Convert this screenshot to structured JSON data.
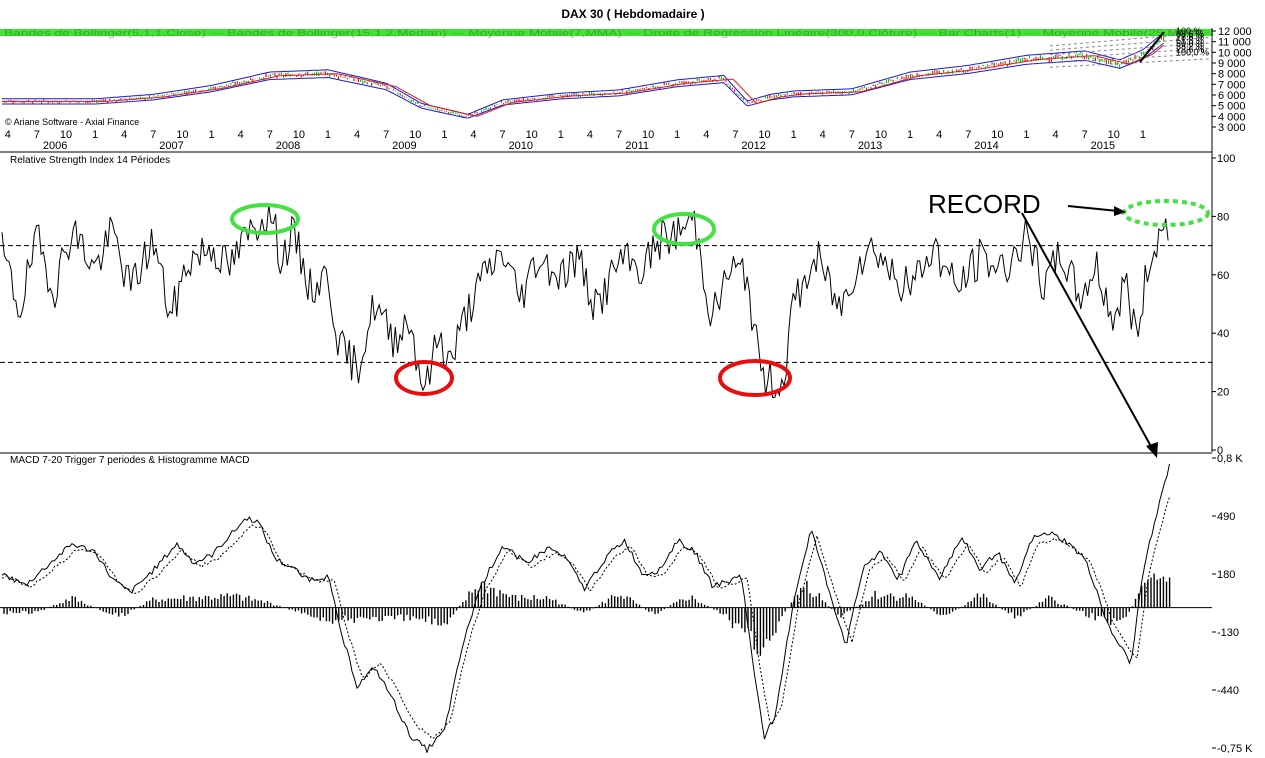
{
  "title": "DAX 30  ( Hebdomadaire )",
  "copyright": "© Ariane Software - Axial Finance",
  "legend_line": "Bandes de Bollinger(5,1,1,Close) — Bandes de Bollinger(15,1,2,Median) — Moyenne Mobile(7,MMA) — Droite de Regression Linéaire(300,0,Clôture) — Bar Charts(1) — Moyenne Mobile(25,MMA)",
  "colors": {
    "accent_green": "#3fe62e",
    "up_bar": "#18b018",
    "down_bar": "#e01818",
    "bollinger_blue": "#1a1ad8",
    "moving_avg_red": "#d81a1a",
    "highlight_green": "#44e044",
    "highlight_red": "#e80e0e"
  },
  "fib_labels": [
    "100 %",
    "88,6 %",
    "78,6 %",
    "61,8 %",
    "50,0 %",
    "38,2 %",
    "23,6 %",
    "100,0 %"
  ],
  "annotations": {
    "record_text": "RECORD"
  },
  "chart_data": [
    {
      "type": "bar",
      "title": "DAX 30  ( Hebdomadaire )",
      "ylim": [
        3000,
        12000
      ],
      "y_ticks": [
        "12 000",
        "11 000",
        "10 000",
        "9 000",
        "8 000",
        "7 000",
        "6 000",
        "5 000",
        "4 000",
        "3 000"
      ],
      "month_ticks": [
        "4",
        "7",
        "10",
        "1",
        "4",
        "7",
        "10",
        "1",
        "4",
        "7",
        "10",
        "1",
        "4",
        "7",
        "10",
        "1",
        "4",
        "7",
        "10",
        "1",
        "4",
        "7",
        "10",
        "1",
        "4",
        "7",
        "10",
        "1",
        "4",
        "7",
        "10",
        "1",
        "4",
        "7",
        "10",
        "1",
        "4",
        "7",
        "10",
        "1"
      ],
      "year_labels": [
        "2006",
        "2007",
        "2008",
        "2009",
        "2010",
        "2011",
        "2012",
        "2013",
        "2014",
        "2015"
      ],
      "x": [
        2006.0,
        2006.5,
        2007.0,
        2007.5,
        2008.0,
        2008.5,
        2008.8,
        2009.2,
        2009.5,
        2010.0,
        2010.5,
        2011.0,
        2011.4,
        2011.6,
        2011.8,
        2012.0,
        2012.5,
        2013.0,
        2013.5,
        2014.0,
        2014.5,
        2014.8,
        2015.0,
        2015.25
      ],
      "values": [
        5400,
        5800,
        6600,
        7800,
        8000,
        6800,
        5000,
        4000,
        5300,
        5900,
        6200,
        7100,
        7500,
        5200,
        5800,
        6100,
        6300,
        7800,
        8400,
        9300,
        9700,
        8900,
        9800,
        12000
      ]
    },
    {
      "type": "line",
      "title": "Relative Strength Index 14 Périodes",
      "ylim": [
        0,
        100
      ],
      "y_ticks": [
        "100",
        "80",
        "60",
        "40",
        "20",
        "0"
      ],
      "levels": [
        70,
        30
      ],
      "x": [
        2005.2,
        2005.35,
        2005.5,
        2005.65,
        2005.8,
        2006.0,
        2006.15,
        2006.3,
        2006.5,
        2006.65,
        2006.8,
        2007.0,
        2007.15,
        2007.3,
        2007.4,
        2007.5,
        2007.6,
        2007.7,
        2007.85,
        2008.0,
        2008.1,
        2008.25,
        2008.4,
        2008.55,
        2008.7,
        2008.8,
        2008.85,
        2008.95,
        2009.05,
        2009.2,
        2009.35,
        2009.5,
        2009.65,
        2009.8,
        2010.0,
        2010.15,
        2010.3,
        2010.5,
        2010.7,
        2010.85,
        2011.0,
        2011.1,
        2011.15,
        2011.3,
        2011.45,
        2011.6,
        2011.7,
        2011.75,
        2011.9,
        2012.0,
        2012.2,
        2012.4,
        2012.55,
        2012.7,
        2012.85,
        2013.0,
        2013.2,
        2013.4,
        2013.6,
        2013.8,
        2014.0,
        2014.15,
        2014.3,
        2014.45,
        2014.6,
        2014.75,
        2014.85,
        2014.95,
        2015.05,
        2015.15,
        2015.25
      ],
      "values": [
        68,
        48,
        72,
        55,
        76,
        62,
        75,
        55,
        72,
        45,
        65,
        70,
        62,
        73,
        78,
        83,
        65,
        74,
        55,
        60,
        35,
        28,
        50,
        38,
        45,
        25,
        22,
        40,
        30,
        48,
        60,
        68,
        52,
        66,
        60,
        66,
        48,
        65,
        62,
        72,
        74,
        78,
        78,
        45,
        62,
        60,
        30,
        25,
        22,
        50,
        66,
        48,
        65,
        70,
        60,
        55,
        70,
        55,
        66,
        62,
        73,
        55,
        68,
        52,
        63,
        44,
        58,
        38,
        65,
        74,
        81
      ]
    },
    {
      "type": "line",
      "title": "MACD 7-20   Trigger 7 periodes & Histogramme MACD",
      "ylim": [
        -750,
        800
      ],
      "y_ticks": [
        "0,8 K",
        "490",
        "180",
        "-130",
        "-440",
        "-0,75 K"
      ],
      "series": [
        {
          "name": "MACD 7-20",
          "x": [
            2005.2,
            2005.4,
            2005.6,
            2005.8,
            2006.0,
            2006.15,
            2006.3,
            2006.5,
            2006.7,
            2006.85,
            2007.0,
            2007.15,
            2007.3,
            2007.4,
            2007.55,
            2007.7,
            2007.85,
            2008.0,
            2008.1,
            2008.25,
            2008.4,
            2008.55,
            2008.7,
            2008.85,
            2009.0,
            2009.15,
            2009.3,
            2009.5,
            2009.7,
            2009.9,
            2010.05,
            2010.2,
            2010.4,
            2010.55,
            2010.7,
            2010.85,
            2011.0,
            2011.15,
            2011.3,
            2011.45,
            2011.55,
            2011.65,
            2011.75,
            2011.85,
            2012.0,
            2012.15,
            2012.3,
            2012.45,
            2012.6,
            2012.75,
            2012.9,
            2013.05,
            2013.25,
            2013.45,
            2013.6,
            2013.75,
            2013.9,
            2014.05,
            2014.2,
            2014.35,
            2014.5,
            2014.6,
            2014.7,
            2014.8,
            2014.9,
            2015.0,
            2015.1,
            2015.2,
            2015.25
          ],
          "values": [
            180,
            120,
            230,
            340,
            300,
            150,
            80,
            200,
            340,
            240,
            280,
            380,
            480,
            460,
            260,
            210,
            150,
            170,
            -100,
            -420,
            -320,
            -480,
            -680,
            -760,
            -660,
            -220,
            100,
            330,
            240,
            320,
            260,
            100,
            280,
            360,
            180,
            200,
            360,
            300,
            120,
            140,
            180,
            -300,
            -690,
            -560,
            40,
            420,
            100,
            -200,
            220,
            300,
            150,
            360,
            160,
            380,
            200,
            300,
            120,
            370,
            400,
            350,
            260,
            100,
            -100,
            -200,
            -300,
            200,
            450,
            700,
            800
          ]
        },
        {
          "name": "Trigger 7",
          "x": [
            2005.2,
            2005.5,
            2005.8,
            2006.1,
            2006.4,
            2006.7,
            2007.0,
            2007.3,
            2007.55,
            2007.8,
            2008.05,
            2008.3,
            2008.55,
            2008.8,
            2009.05,
            2009.3,
            2009.55,
            2009.8,
            2010.1,
            2010.4,
            2010.7,
            2011.0,
            2011.3,
            2011.6,
            2011.85,
            2012.1,
            2012.4,
            2012.7,
            2013.0,
            2013.3,
            2013.6,
            2013.9,
            2014.2,
            2014.5,
            2014.75,
            2014.95,
            2015.1,
            2015.25
          ],
          "values": [
            160,
            170,
            300,
            220,
            180,
            300,
            300,
            430,
            380,
            180,
            40,
            -320,
            -380,
            -700,
            -640,
            -50,
            300,
            280,
            200,
            260,
            220,
            320,
            220,
            150,
            -620,
            -50,
            120,
            250,
            320,
            250,
            300,
            200,
            380,
            280,
            -100,
            -220,
            200,
            500
          ]
        }
      ],
      "histogram": {
        "x": [
          2005.5,
          2005.8,
          2006.2,
          2006.5,
          2006.8,
          2007.2,
          2007.5,
          2007.8,
          2008.1,
          2008.3,
          2008.55,
          2008.8,
          2009.0,
          2009.3,
          2009.6,
          2009.9,
          2010.2,
          2010.5,
          2010.8,
          2011.1,
          2011.4,
          2011.7,
          2011.85,
          2012.1,
          2012.4,
          2012.7,
          2013.0,
          2013.3,
          2013.6,
          2013.9,
          2014.2,
          2014.5,
          2014.7,
          2014.85,
          2015.0,
          2015.1,
          2015.2
        ],
        "values": [
          -30,
          60,
          -60,
          50,
          60,
          70,
          30,
          -40,
          -90,
          -60,
          -70,
          -70,
          -100,
          150,
          60,
          60,
          -40,
          90,
          -40,
          70,
          -40,
          -250,
          -120,
          160,
          -60,
          80,
          70,
          -60,
          80,
          -60,
          60,
          -40,
          -80,
          -60,
          120,
          160,
          180
        ]
      }
    }
  ]
}
